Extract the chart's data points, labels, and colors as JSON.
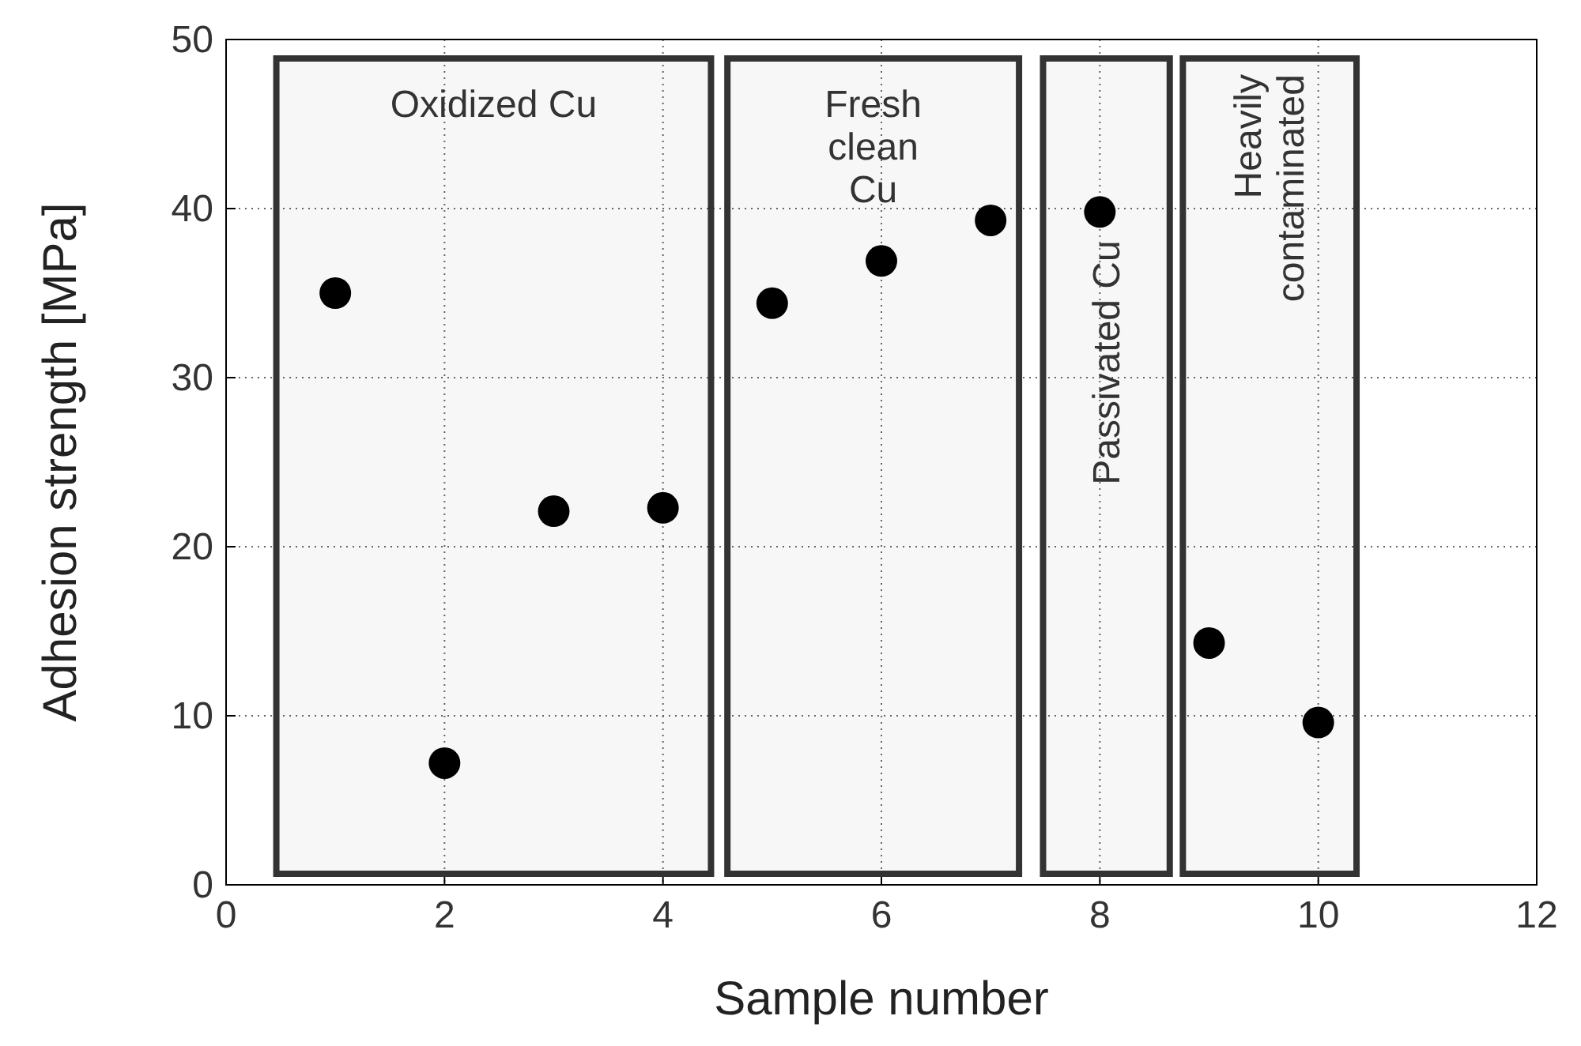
{
  "chart_data": {
    "type": "scatter",
    "xlabel": "Sample number",
    "ylabel": "Adhesion strength [MPa]",
    "x": [
      1,
      2,
      3,
      4,
      5,
      6,
      7,
      8,
      9,
      10
    ],
    "series": [
      {
        "color": "#000000",
        "values": [
          35.0,
          7.2,
          22.1,
          22.3,
          34.4,
          36.9,
          39.3,
          39.8,
          14.3,
          9.6
        ]
      }
    ],
    "xlim": [
      0,
      12
    ],
    "xticks": [
      0,
      2,
      4,
      6,
      8,
      10,
      12
    ],
    "ylim": [
      0,
      50
    ],
    "yticks": [
      0,
      10,
      20,
      30,
      40,
      50
    ],
    "grid": true,
    "marker": "circle",
    "bands": [
      {
        "axis": "x",
        "from": 0.46,
        "to": 4.44,
        "label": "Oxidized Cu",
        "color": "#333333"
      },
      {
        "axis": "x",
        "from": 4.59,
        "to": 7.26,
        "label": "Fresh\nclean\nCu",
        "color": "#333333"
      },
      {
        "axis": "x",
        "from": 7.48,
        "to": 8.64,
        "label": "Passivated Cu",
        "color": "#333333"
      },
      {
        "axis": "x",
        "from": 8.76,
        "to": 10.35,
        "label": "Heavily\ncontaminated",
        "color": "#333333"
      }
    ]
  }
}
